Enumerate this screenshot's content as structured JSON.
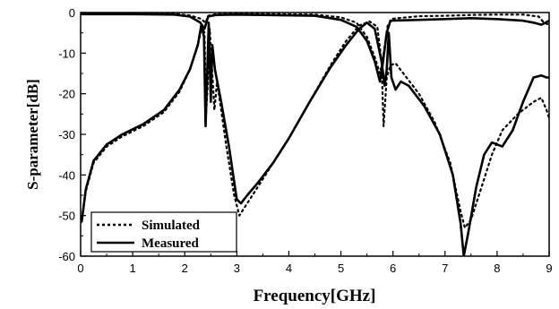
{
  "chart_data": {
    "type": "line",
    "xlabel": "Frequency[GHz]",
    "ylabel": "S-parameter[dB]",
    "xlim": [
      0,
      9
    ],
    "ylim": [
      -60,
      0
    ],
    "xticks": [
      0,
      1,
      2,
      3,
      4,
      5,
      6,
      7,
      8,
      9
    ],
    "yticks": [
      0,
      -10,
      -20,
      -30,
      -40,
      -50,
      -60
    ],
    "grid": false,
    "legend_position": "bottom-left",
    "series": [
      {
        "name": "Simulated",
        "style": "dotted",
        "points": [
          [
            0.02,
            -51.5
          ],
          [
            0.1,
            -44
          ],
          [
            0.25,
            -37
          ],
          [
            0.5,
            -33
          ],
          [
            0.8,
            -30.5
          ],
          [
            1.2,
            -28
          ],
          [
            1.6,
            -24.5
          ],
          [
            1.9,
            -19.5
          ],
          [
            2.1,
            -14
          ],
          [
            2.25,
            -8
          ],
          [
            2.33,
            -3.5
          ],
          [
            2.38,
            -5
          ],
          [
            2.41,
            -25
          ],
          [
            2.44,
            -18
          ],
          [
            2.48,
            -4
          ],
          [
            2.53,
            -15
          ],
          [
            2.57,
            -24
          ],
          [
            2.62,
            -17
          ],
          [
            2.7,
            -24
          ],
          [
            2.8,
            -33
          ],
          [
            2.95,
            -45
          ],
          [
            3.05,
            -50
          ],
          [
            3.15,
            -48
          ],
          [
            3.35,
            -44
          ],
          [
            3.6,
            -39
          ],
          [
            4.0,
            -31
          ],
          [
            4.4,
            -22
          ],
          [
            4.8,
            -13
          ],
          [
            5.1,
            -7
          ],
          [
            5.35,
            -3.2
          ],
          [
            5.55,
            -2.2
          ],
          [
            5.7,
            -3.5
          ],
          [
            5.78,
            -12
          ],
          [
            5.82,
            -28
          ],
          [
            5.88,
            -16
          ],
          [
            5.95,
            -13
          ],
          [
            6.05,
            -12.5
          ],
          [
            6.2,
            -15
          ],
          [
            6.5,
            -20
          ],
          [
            6.8,
            -27
          ],
          [
            7.1,
            -37
          ],
          [
            7.3,
            -49
          ],
          [
            7.38,
            -53
          ],
          [
            7.5,
            -51
          ],
          [
            7.7,
            -43
          ],
          [
            7.9,
            -35
          ],
          [
            8.1,
            -29
          ],
          [
            8.4,
            -25
          ],
          [
            8.7,
            -22
          ],
          [
            8.85,
            -21
          ],
          [
            8.95,
            -24
          ],
          [
            9.0,
            -26
          ]
        ]
      },
      {
        "name": "Measured",
        "style": "solid",
        "points": [
          [
            0.02,
            -51.5
          ],
          [
            0.1,
            -43.5
          ],
          [
            0.25,
            -36.5
          ],
          [
            0.5,
            -32.5
          ],
          [
            0.8,
            -30
          ],
          [
            1.2,
            -27.5
          ],
          [
            1.6,
            -24
          ],
          [
            1.9,
            -19
          ],
          [
            2.1,
            -14
          ],
          [
            2.25,
            -8
          ],
          [
            2.32,
            -3
          ],
          [
            2.37,
            -6
          ],
          [
            2.4,
            -28
          ],
          [
            2.43,
            -16
          ],
          [
            2.46,
            -2.5
          ],
          [
            2.5,
            -22
          ],
          [
            2.53,
            -8
          ],
          [
            2.58,
            -14
          ],
          [
            2.7,
            -22
          ],
          [
            2.85,
            -33
          ],
          [
            3.0,
            -46
          ],
          [
            3.08,
            -47
          ],
          [
            3.2,
            -45
          ],
          [
            3.4,
            -42
          ],
          [
            3.7,
            -37
          ],
          [
            4.0,
            -31
          ],
          [
            4.4,
            -22
          ],
          [
            4.8,
            -13.5
          ],
          [
            5.1,
            -8
          ],
          [
            5.35,
            -4
          ],
          [
            5.5,
            -2.5
          ],
          [
            5.65,
            -4
          ],
          [
            5.78,
            -12
          ],
          [
            5.84,
            -18
          ],
          [
            5.88,
            -14
          ],
          [
            5.92,
            -5
          ],
          [
            5.97,
            -16
          ],
          [
            6.05,
            -19
          ],
          [
            6.15,
            -17
          ],
          [
            6.3,
            -18
          ],
          [
            6.6,
            -23
          ],
          [
            6.9,
            -30
          ],
          [
            7.15,
            -40
          ],
          [
            7.3,
            -52
          ],
          [
            7.36,
            -60
          ],
          [
            7.45,
            -54
          ],
          [
            7.6,
            -43
          ],
          [
            7.75,
            -35
          ],
          [
            7.9,
            -32
          ],
          [
            8.1,
            -33
          ],
          [
            8.3,
            -29
          ],
          [
            8.5,
            -22
          ],
          [
            8.7,
            -16
          ],
          [
            8.85,
            -15.5
          ],
          [
            8.95,
            -16
          ],
          [
            9.0,
            -16
          ]
        ]
      },
      {
        "name": "",
        "style": "dotted",
        "points": [
          [
            0.0,
            -0.2
          ],
          [
            1.0,
            -0.2
          ],
          [
            1.8,
            -0.3
          ],
          [
            2.1,
            -0.7
          ],
          [
            2.3,
            -1.5
          ],
          [
            2.4,
            -2.5
          ],
          [
            2.45,
            -0.8
          ],
          [
            2.6,
            -0.4
          ],
          [
            3.0,
            -0.3
          ],
          [
            4.5,
            -0.5
          ],
          [
            5.0,
            -1.2
          ],
          [
            5.3,
            -2.5
          ],
          [
            5.5,
            -6
          ],
          [
            5.65,
            -11
          ],
          [
            5.75,
            -15
          ],
          [
            5.8,
            -12
          ],
          [
            5.9,
            -3
          ],
          [
            6.0,
            -1.5
          ],
          [
            6.5,
            -0.9
          ],
          [
            7.0,
            -0.8
          ],
          [
            7.5,
            -0.6
          ],
          [
            8.0,
            -0.5
          ],
          [
            8.5,
            -0.5
          ],
          [
            8.8,
            -1
          ],
          [
            8.9,
            -2.5
          ],
          [
            9.0,
            -3
          ]
        ]
      },
      {
        "name": "",
        "style": "solid",
        "points": [
          [
            0.0,
            -0.4
          ],
          [
            1.0,
            -0.4
          ],
          [
            1.8,
            -0.5
          ],
          [
            2.1,
            -1
          ],
          [
            2.3,
            -2.5
          ],
          [
            2.38,
            -4
          ],
          [
            2.45,
            -1
          ],
          [
            2.6,
            -0.6
          ],
          [
            3.0,
            -0.5
          ],
          [
            4.5,
            -0.8
          ],
          [
            5.0,
            -1.8
          ],
          [
            5.3,
            -3.5
          ],
          [
            5.5,
            -7
          ],
          [
            5.65,
            -12
          ],
          [
            5.75,
            -17
          ],
          [
            5.8,
            -13
          ],
          [
            5.88,
            -5
          ],
          [
            5.95,
            -2
          ],
          [
            6.5,
            -1.8
          ],
          [
            7.0,
            -1.6
          ],
          [
            7.5,
            -1.4
          ],
          [
            8.0,
            -1.6
          ],
          [
            8.5,
            -2
          ],
          [
            8.7,
            -2.5
          ],
          [
            8.85,
            -3
          ],
          [
            9.0,
            -2
          ]
        ]
      }
    ],
    "legend": [
      "Simulated",
      "Measured"
    ]
  }
}
